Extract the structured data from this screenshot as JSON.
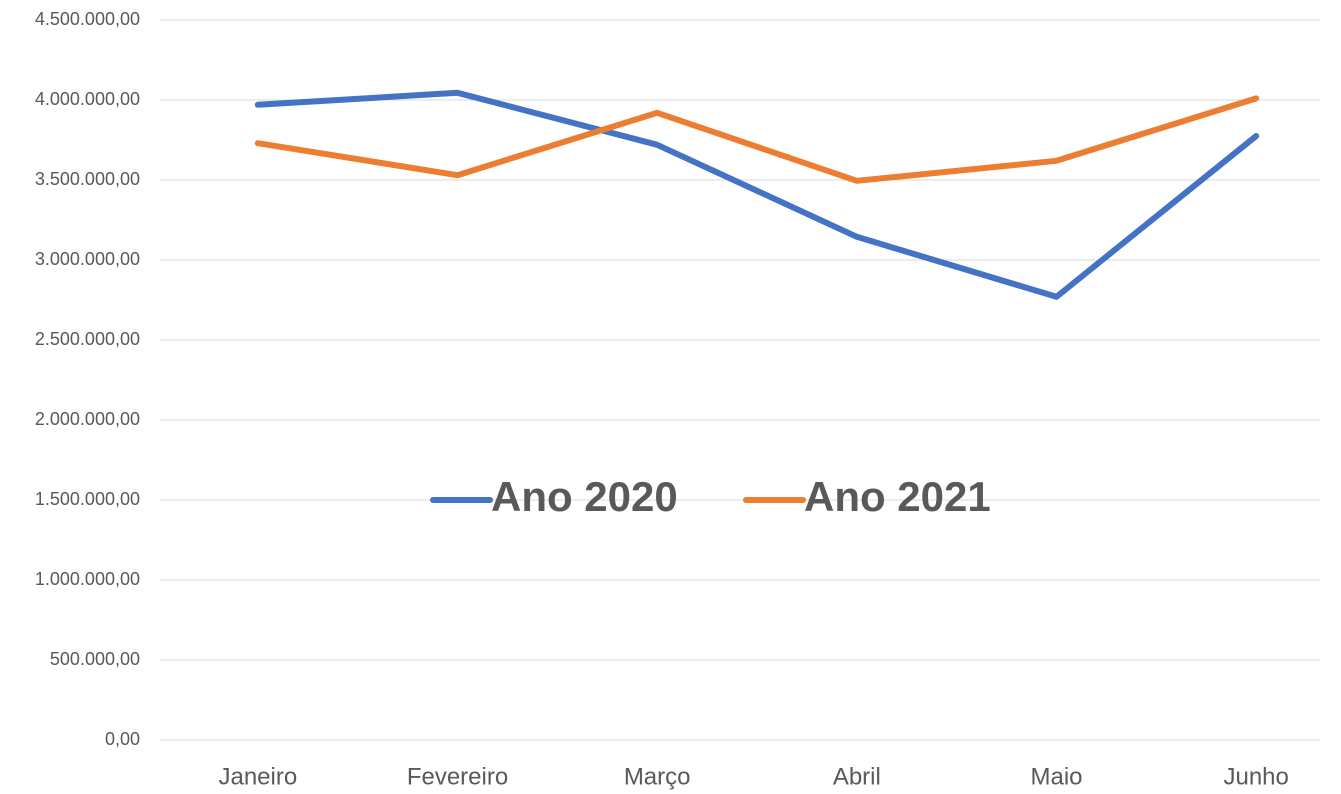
{
  "chart_data": {
    "type": "line",
    "categories": [
      "Janeiro",
      "Fevereiro",
      "Março",
      "Abril",
      "Maio",
      "Junho"
    ],
    "series": [
      {
        "name": "Ano 2020",
        "color": "#4472c4",
        "values": [
          3970000,
          4045000,
          3720000,
          3145000,
          2770000,
          3775000
        ]
      },
      {
        "name": "Ano 2021",
        "color": "#ed7d31",
        "values": [
          3730000,
          3530000,
          3920000,
          3495000,
          3620000,
          4010000
        ]
      }
    ],
    "ylim": [
      0,
      4500000
    ],
    "yticks": [
      {
        "value": 0,
        "label": "0,00"
      },
      {
        "value": 500000,
        "label": "500.000,00"
      },
      {
        "value": 1000000,
        "label": "1.000.000,00"
      },
      {
        "value": 1500000,
        "label": "1.500.000,00"
      },
      {
        "value": 2000000,
        "label": "2.000.000,00"
      },
      {
        "value": 2500000,
        "label": "2.500.000,00"
      },
      {
        "value": 3000000,
        "label": "3.000.000,00"
      },
      {
        "value": 3500000,
        "label": "3.500.000,00"
      },
      {
        "value": 4000000,
        "label": "4.000.000,00"
      },
      {
        "value": 4500000,
        "label": "4.500.000,00"
      }
    ],
    "grid": true,
    "legend": "center"
  }
}
